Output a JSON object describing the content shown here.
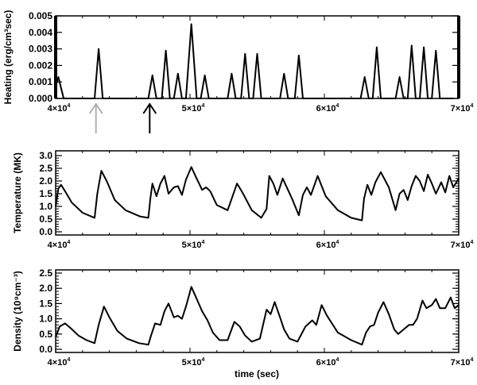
{
  "figure": {
    "xlabel": "time (sec)",
    "x_tick_labels": [
      {
        "base": "4×10",
        "exp": "4"
      },
      {
        "base": "5×10",
        "exp": "4"
      },
      {
        "base": "6×10",
        "exp": "4"
      },
      {
        "base": "7×10",
        "exp": "4"
      }
    ],
    "arrows": [
      {
        "time": 43000,
        "color": "#b0b0b0"
      },
      {
        "time": 47000,
        "color": "#000000"
      }
    ]
  },
  "chart_data": [
    {
      "type": "line",
      "title": "",
      "xlabel": "",
      "ylabel": "Heating (erg/cm³sec)",
      "xlim": [
        40000,
        70000
      ],
      "ylim": [
        0,
        0.005
      ],
      "yticks": [
        "0.000",
        "0.001",
        "0.002",
        "0.003",
        "0.004",
        "0.005"
      ],
      "grid": false,
      "x": [
        40000,
        40200,
        40600,
        42900,
        43200,
        43500,
        46900,
        47200,
        47500,
        47900,
        48200,
        48500,
        48800,
        49100,
        49400,
        49700,
        50100,
        50500,
        50800,
        51100,
        51400,
        52800,
        53100,
        53400,
        53800,
        54100,
        54400,
        54700,
        55000,
        55300,
        56700,
        57000,
        57300,
        57800,
        58100,
        58400,
        62700,
        63000,
        63300,
        63600,
        63900,
        64200,
        65300,
        65600,
        65900,
        66200,
        66500,
        66800,
        67100,
        67400,
        67700,
        68000,
        68300,
        68600,
        68800,
        69000,
        69300,
        69600
      ],
      "series": [
        {
          "name": "Heating",
          "values": [
            0.0007,
            0.0013,
            0.0,
            0.0,
            0.003,
            0.0,
            0.0,
            0.0014,
            0.0,
            0.0,
            0.0029,
            0.0,
            0.0,
            0.0015,
            0.0,
            0.0,
            0.0045,
            0.0,
            0.0,
            0.0014,
            0.0,
            0.0,
            0.0015,
            0.0,
            0.0,
            0.0027,
            0.0,
            0.0,
            0.0027,
            0.0,
            0.0,
            0.0015,
            0.0,
            0.0,
            0.0026,
            0.0,
            0.0,
            0.0013,
            0.0,
            0.0,
            0.0031,
            0.0,
            0.0,
            0.0013,
            0.0,
            0.0,
            0.0032,
            0.0,
            0.0,
            0.0031,
            0.0,
            0.0,
            0.0029,
            0.0,
            0.0,
            0.0,
            0.0,
            0.0
          ]
        }
      ]
    },
    {
      "type": "line",
      "title": "",
      "xlabel": "",
      "ylabel": "Temperature (MK)",
      "xlim": [
        40000,
        70000
      ],
      "ylim": [
        0,
        3.0
      ],
      "yticks": [
        "0.0",
        "0.5",
        "1.0",
        "1.5",
        "2.0",
        "2.5",
        "3.0"
      ],
      "grid": false,
      "x": [
        40000,
        40200,
        40400,
        40700,
        41200,
        42000,
        42900,
        43100,
        43400,
        43800,
        44400,
        45200,
        46300,
        46900,
        47050,
        47200,
        47500,
        47800,
        48100,
        48400,
        48800,
        49100,
        49400,
        49700,
        50100,
        50400,
        50900,
        51200,
        51500,
        52000,
        52800,
        53100,
        53500,
        53900,
        54600,
        55300,
        55700,
        55900,
        56200,
        56500,
        56900,
        57600,
        58100,
        58400,
        58700,
        59000,
        59500,
        60100,
        61000,
        62000,
        62800,
        62950,
        63200,
        63500,
        63800,
        64200,
        64800,
        65300,
        65600,
        65900,
        66200,
        66500,
        66800,
        67100,
        67400,
        67700,
        68000,
        68300,
        68700,
        69000,
        69300,
        69600,
        70000
      ],
      "series": [
        {
          "name": "Temperature",
          "values": [
            1.0,
            1.7,
            1.85,
            1.6,
            1.15,
            0.75,
            0.55,
            1.5,
            2.4,
            2.0,
            1.25,
            0.85,
            0.6,
            0.55,
            1.3,
            1.9,
            1.4,
            1.9,
            2.2,
            1.5,
            1.75,
            1.8,
            1.45,
            2.05,
            2.55,
            2.2,
            1.65,
            1.75,
            1.6,
            1.05,
            0.85,
            1.3,
            1.9,
            1.55,
            0.85,
            0.55,
            0.9,
            2.2,
            1.9,
            1.45,
            2.1,
            1.3,
            0.65,
            1.45,
            1.75,
            1.45,
            2.2,
            1.4,
            0.85,
            0.55,
            0.45,
            1.3,
            1.85,
            1.45,
            1.95,
            2.35,
            1.75,
            0.85,
            1.5,
            1.65,
            1.25,
            1.8,
            2.2,
            2.0,
            1.6,
            2.25,
            1.9,
            1.5,
            1.95,
            1.55,
            2.2,
            1.75,
            2.1
          ]
        }
      ]
    },
    {
      "type": "line",
      "title": "",
      "xlabel": "time (sec)",
      "ylabel": "Density (10⁹cm⁻³)",
      "xlim": [
        40000,
        70000
      ],
      "ylim": [
        0,
        2.5
      ],
      "yticks": [
        "0.0",
        "0.5",
        "1.0",
        "1.5",
        "2.0",
        "2.5"
      ],
      "grid": false,
      "x": [
        40000,
        40300,
        40700,
        41100,
        41700,
        42300,
        42900,
        43200,
        43600,
        44000,
        44600,
        45300,
        46200,
        46900,
        47100,
        47400,
        47800,
        48100,
        48400,
        48800,
        49100,
        49400,
        49700,
        50100,
        50400,
        50900,
        51300,
        51700,
        52200,
        52800,
        53300,
        53700,
        54100,
        54600,
        55200,
        55700,
        56000,
        56300,
        56700,
        57000,
        57400,
        58000,
        58600,
        59100,
        59400,
        59800,
        60200,
        61000,
        62000,
        62800,
        63100,
        63400,
        63700,
        64000,
        64400,
        64800,
        65200,
        65500,
        65900,
        66300,
        66600,
        66900,
        67300,
        67600,
        68000,
        68300,
        68600,
        69000,
        69400,
        69700,
        70000
      ],
      "series": [
        {
          "name": "Density",
          "values": [
            0.4,
            0.75,
            0.85,
            0.7,
            0.45,
            0.3,
            0.2,
            0.8,
            1.4,
            1.05,
            0.6,
            0.35,
            0.2,
            0.15,
            0.45,
            0.85,
            0.8,
            1.25,
            1.5,
            1.05,
            1.1,
            1.0,
            1.4,
            2.05,
            1.75,
            1.25,
            0.95,
            0.55,
            0.3,
            0.3,
            0.9,
            0.75,
            0.45,
            0.25,
            0.35,
            1.3,
            1.15,
            1.55,
            1.05,
            0.65,
            0.35,
            0.25,
            0.75,
            0.95,
            0.8,
            1.45,
            1.1,
            0.55,
            0.3,
            0.15,
            0.55,
            0.75,
            0.8,
            1.2,
            1.55,
            1.15,
            0.65,
            0.5,
            0.65,
            0.8,
            0.8,
            1.0,
            1.6,
            1.35,
            1.45,
            1.65,
            1.35,
            1.35,
            1.7,
            1.35,
            1.45
          ]
        }
      ]
    }
  ]
}
